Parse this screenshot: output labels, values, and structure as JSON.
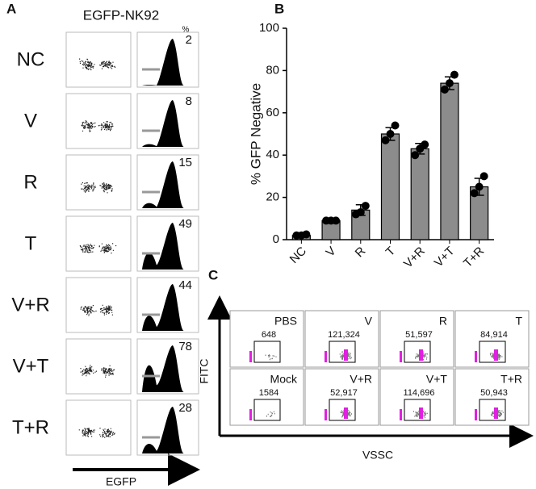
{
  "panel_a": {
    "letter": "A",
    "title": "EGFP-NK92",
    "percent_header": "%",
    "x_label": "EGFP",
    "rows": [
      {
        "label": "NC",
        "percent": 2
      },
      {
        "label": "V",
        "percent": 8
      },
      {
        "label": "R",
        "percent": 15
      },
      {
        "label": "T",
        "percent": 49
      },
      {
        "label": "V+R",
        "percent": 44
      },
      {
        "label": "V+T",
        "percent": 78
      },
      {
        "label": "T+R",
        "percent": 28
      }
    ]
  },
  "chart_data": {
    "type": "bar",
    "letter": "B",
    "ylabel": "% GFP Negative",
    "categories": [
      "NC",
      "V",
      "R",
      "T",
      "V+R",
      "V+T",
      "T+R"
    ],
    "values": [
      2,
      9,
      14,
      50,
      43,
      74,
      25
    ],
    "errors": [
      0.5,
      0.5,
      2.5,
      3,
      2.5,
      3,
      4
    ],
    "points": [
      [
        2,
        2,
        2.5
      ],
      [
        9,
        9,
        9
      ],
      [
        12,
        13,
        16
      ],
      [
        47,
        50,
        54
      ],
      [
        40,
        43,
        45
      ],
      [
        71,
        74,
        78
      ],
      [
        22,
        25,
        30
      ]
    ],
    "color": "#8c8c8c",
    "ylim": [
      0,
      100
    ],
    "yticks": [
      0,
      20,
      40,
      60,
      80,
      100
    ]
  },
  "panel_c": {
    "letter": "C",
    "y_label": "FITC",
    "x_label": "VSSC",
    "cells": [
      {
        "label": "PBS",
        "count": "648"
      },
      {
        "label": "V",
        "count": "121,324"
      },
      {
        "label": "R",
        "count": "51,597"
      },
      {
        "label": "T",
        "count": "84,914"
      },
      {
        "label": "Mock",
        "count": "1584"
      },
      {
        "label": "V+R",
        "count": "52,917"
      },
      {
        "label": "V+T",
        "count": "114,696"
      },
      {
        "label": "T+R",
        "count": "50,943"
      }
    ]
  }
}
